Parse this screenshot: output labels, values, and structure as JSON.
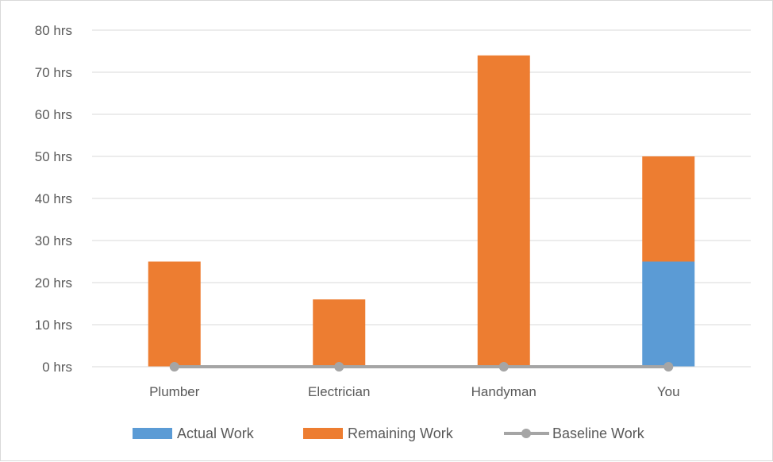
{
  "chart_data": {
    "type": "bar",
    "stacked": true,
    "categories": [
      "Plumber",
      "Electrician",
      "Handyman",
      "You"
    ],
    "series": [
      {
        "name": "Actual Work",
        "kind": "bar",
        "color": "#5b9bd5",
        "values": [
          0,
          0,
          0,
          25
        ]
      },
      {
        "name": "Remaining Work",
        "kind": "bar",
        "color": "#ed7d31",
        "values": [
          25,
          16,
          74,
          25
        ]
      },
      {
        "name": "Baseline Work",
        "kind": "line",
        "color": "#a5a5a5",
        "values": [
          0,
          0,
          0,
          0
        ]
      }
    ],
    "yticks": [
      "0 hrs",
      "10 hrs",
      "20 hrs",
      "30 hrs",
      "40 hrs",
      "50 hrs",
      "60 hrs",
      "70 hrs",
      "80 hrs"
    ],
    "ylim": [
      0,
      80
    ],
    "ystep": 10,
    "grid": true,
    "legend_position": "bottom",
    "title": "",
    "xlabel": "",
    "ylabel": ""
  }
}
